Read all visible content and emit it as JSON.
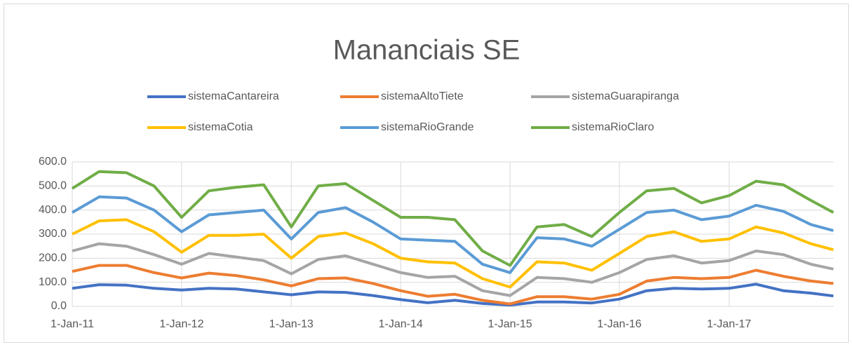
{
  "chart_data": {
    "type": "line",
    "stacked": true,
    "title": "Mananciais SE",
    "x": [
      "2011-01-01",
      "2011-04-01",
      "2011-07-01",
      "2011-10-01",
      "2012-01-01",
      "2012-04-01",
      "2012-07-01",
      "2012-10-01",
      "2013-01-01",
      "2013-04-01",
      "2013-07-01",
      "2013-10-01",
      "2014-01-01",
      "2014-04-01",
      "2014-07-01",
      "2014-10-01",
      "2015-01-01",
      "2015-04-01",
      "2015-07-01",
      "2015-10-01",
      "2016-01-01",
      "2016-04-01",
      "2016-07-01",
      "2016-10-01",
      "2017-01-01",
      "2017-04-01",
      "2017-07-01",
      "2017-10-01",
      "2017-12-15"
    ],
    "series": [
      {
        "name": "sistemaCantareira",
        "color": "#4472c4",
        "values": [
          75,
          90,
          88,
          75,
          68,
          75,
          72,
          60,
          48,
          60,
          58,
          45,
          28,
          15,
          25,
          12,
          5,
          18,
          18,
          14,
          30,
          65,
          75,
          72,
          75,
          92,
          65,
          55,
          43
        ]
      },
      {
        "name": "sistemaAltoTiete",
        "color": "#ed7d31",
        "values": [
          70,
          80,
          82,
          65,
          50,
          63,
          56,
          50,
          37,
          55,
          60,
          50,
          37,
          27,
          25,
          13,
          5,
          22,
          22,
          16,
          20,
          40,
          45,
          43,
          45,
          58,
          60,
          50,
          52
        ]
      },
      {
        "name": "sistemaGuarapiranga",
        "color": "#a5a5a5",
        "values": [
          85,
          90,
          80,
          75,
          57,
          82,
          77,
          80,
          50,
          80,
          92,
          80,
          75,
          78,
          75,
          40,
          35,
          80,
          75,
          70,
          90,
          90,
          90,
          65,
          70,
          80,
          90,
          70,
          60
        ]
      },
      {
        "name": "sistemaCotia",
        "color": "#ffc000",
        "values": [
          70,
          95,
          110,
          95,
          50,
          75,
          90,
          110,
          65,
          95,
          95,
          85,
          60,
          65,
          55,
          50,
          35,
          65,
          65,
          50,
          80,
          95,
          100,
          90,
          90,
          100,
          90,
          85,
          80
        ]
      },
      {
        "name": "sistemaRioGrande",
        "color": "#5b9bd5",
        "values": [
          90,
          100,
          90,
          90,
          85,
          85,
          95,
          100,
          80,
          100,
          105,
          90,
          80,
          90,
          90,
          60,
          60,
          100,
          100,
          100,
          100,
          100,
          90,
          90,
          95,
          90,
          90,
          80,
          80
        ]
      },
      {
        "name": "sistemaRioClaro",
        "color": "#70ad47",
        "values": [
          100,
          105,
          105,
          100,
          60,
          100,
          105,
          105,
          50,
          110,
          100,
          90,
          90,
          95,
          90,
          55,
          30,
          45,
          60,
          40,
          70,
          90,
          90,
          70,
          85,
          100,
          110,
          100,
          75
        ]
      }
    ],
    "xlim": [
      "2011-01-01",
      "2017-12-15"
    ],
    "xticks": [
      {
        "value": "2011-01-01",
        "label": "1-Jan-11"
      },
      {
        "value": "2012-01-01",
        "label": "1-Jan-12"
      },
      {
        "value": "2013-01-01",
        "label": "1-Jan-13"
      },
      {
        "value": "2014-01-01",
        "label": "1-Jan-14"
      },
      {
        "value": "2015-01-01",
        "label": "1-Jan-15"
      },
      {
        "value": "2016-01-01",
        "label": "1-Jan-16"
      },
      {
        "value": "2017-01-01",
        "label": "1-Jan-17"
      }
    ],
    "ylim": [
      0,
      600
    ],
    "yticks": [
      {
        "value": 0,
        "label": "0.0"
      },
      {
        "value": 100,
        "label": "100.0"
      },
      {
        "value": 200,
        "label": "200.0"
      },
      {
        "value": 300,
        "label": "300.0"
      },
      {
        "value": 400,
        "label": "400.0"
      },
      {
        "value": 500,
        "label": "500.0"
      },
      {
        "value": 600,
        "label": "600.0"
      }
    ],
    "grid": true,
    "legend": "top"
  }
}
